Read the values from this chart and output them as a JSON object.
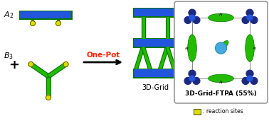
{
  "bg_color": "#ffffff",
  "blue": "#2255dd",
  "blue2": "#1a40b0",
  "green": "#22bb00",
  "dark_green": "#007700",
  "yellow": "#dddd00",
  "red": "#ff2200",
  "black": "#000000",
  "gray": "#888888",
  "cyan": "#44aadd",
  "darkblue": "#1a2a80",
  "arrow_label": "One-Pot",
  "label_3dgrid": "3D-Grid",
  "label_ftpa": "3D-Grid-FTPA (55%)",
  "label_reaction": ": reaction sites"
}
